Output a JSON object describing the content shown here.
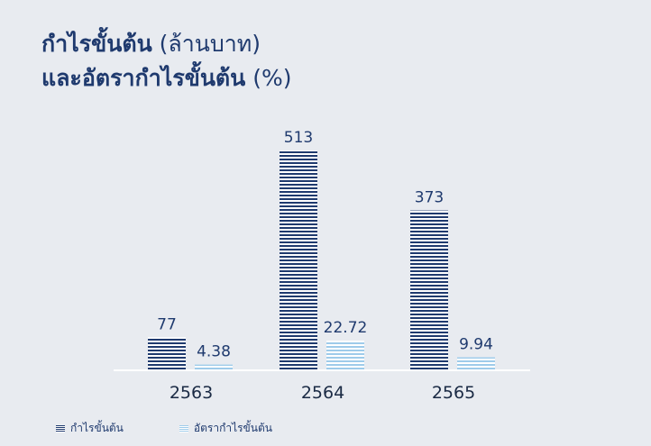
{
  "title": {
    "line1_bold": "กำไรขั้นต้น",
    "line1_light": "(ล้านบาท)",
    "line2_bold": "และอัตรากำไรขั้นต้น",
    "line2_light": "(%)"
  },
  "colors": {
    "gross_profit": "#1f3a6e",
    "gross_margin": "#9ecbea",
    "text": "#1f3a6e",
    "background": "#e8ebf0"
  },
  "chart_data": {
    "type": "bar",
    "categories": [
      "2563",
      "2564",
      "2565"
    ],
    "series": [
      {
        "name": "กำไรขั้นต้น",
        "values": [
          77,
          513,
          373
        ],
        "labels": [
          "77",
          "513",
          "373"
        ]
      },
      {
        "name": "อัตรากำไรขั้นต้น",
        "values": [
          4.38,
          22.72,
          9.94
        ],
        "labels": [
          "4.38",
          "22.72",
          "9.94"
        ]
      }
    ],
    "grid": false,
    "legend": "bottom-left"
  },
  "legend": {
    "items": [
      "กำไรขั้นต้น",
      "อัตรากำไรขั้นต้น"
    ]
  }
}
